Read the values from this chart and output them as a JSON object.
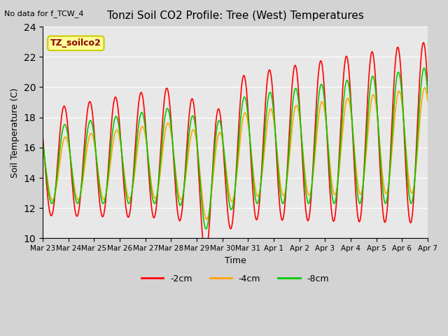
{
  "title": "Tonzi Soil CO2 Profile: Tree (West) Temperatures",
  "no_data_text": "No data for f_TCW_4",
  "annotation_text": "TZ_soilco2",
  "ylabel": "Soil Temperature (C)",
  "xlabel": "Time",
  "ylim": [
    10,
    24
  ],
  "yticks": [
    10,
    12,
    14,
    16,
    18,
    20,
    22,
    24
  ],
  "line_colors": {
    "-2cm": "#ff0000",
    "-4cm": "#ffa500",
    "-8cm": "#00cc00"
  },
  "x_tick_labels": [
    "Mar 23",
    "Mar 24",
    "Mar 25",
    "Mar 26",
    "Mar 27",
    "Mar 28",
    "Mar 29",
    "Mar 30",
    "Mar 31",
    "Apr 1",
    "Apr 2",
    "Apr 3",
    "Apr 4",
    "Apr 5",
    "Apr 6",
    "Apr 7"
  ],
  "num_days": 15,
  "points_per_day": 48
}
